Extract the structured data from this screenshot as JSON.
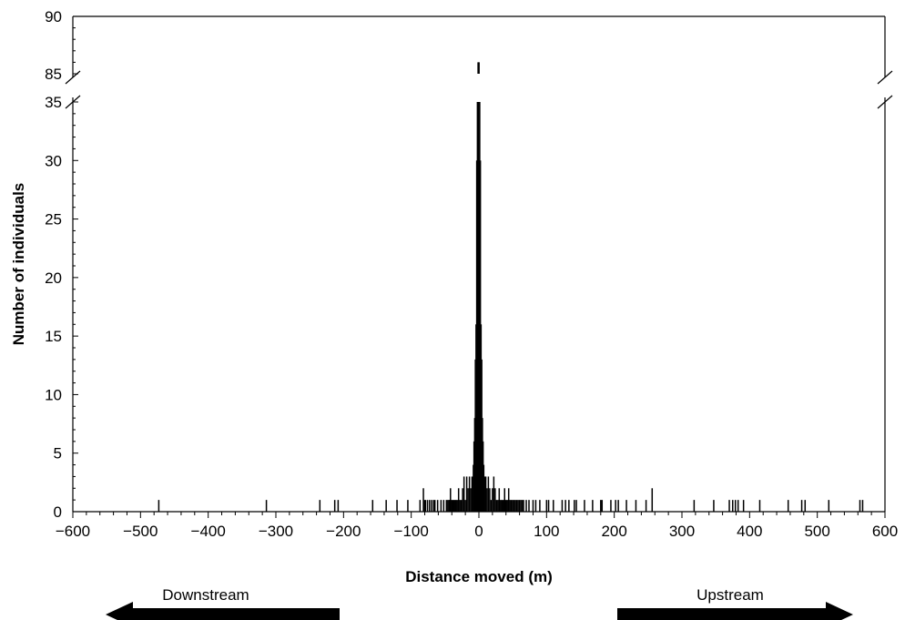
{
  "chart_data": {
    "type": "bar",
    "xlabel": "Distance moved (m)",
    "ylabel": "Number of individuals",
    "xlim": [
      -600,
      600
    ],
    "x_ticks": [
      -600,
      -500,
      -400,
      -300,
      -200,
      -100,
      0,
      100,
      200,
      300,
      400,
      500,
      600
    ],
    "y_lower_range": [
      0,
      35
    ],
    "y_upper_range": [
      85,
      90
    ],
    "y_lower_ticks": [
      0,
      5,
      10,
      15,
      20,
      25,
      30,
      35
    ],
    "y_upper_ticks": [
      85,
      90
    ],
    "axis_break": true,
    "bar_color": "#000000",
    "x": [
      -473,
      -314,
      -235,
      -213,
      -208,
      -157,
      -137,
      -121,
      -105,
      -87,
      -82,
      -81,
      -79,
      -76,
      -73,
      -70,
      -67,
      -65,
      -61,
      -56,
      -52,
      -48,
      -46,
      -44,
      -43,
      -42,
      -40,
      -38,
      -36,
      -34,
      -32,
      -30,
      -28,
      -26,
      -24,
      -22,
      -20,
      -18,
      -16,
      -14,
      -12,
      -10,
      -8,
      -7,
      -6,
      -5,
      -4,
      -3,
      -2,
      -1,
      0,
      1,
      2,
      3,
      4,
      5,
      6,
      7,
      8,
      10,
      12,
      14,
      16,
      18,
      20,
      22,
      24,
      26,
      28,
      30,
      32,
      34,
      36,
      38,
      40,
      42,
      44,
      46,
      48,
      50,
      52,
      54,
      56,
      58,
      60,
      62,
      64,
      66,
      70,
      74,
      80,
      84,
      90,
      100,
      103,
      110,
      123,
      128,
      133,
      141,
      144,
      156,
      168,
      180,
      182,
      195,
      202,
      206,
      218,
      232,
      247,
      256,
      318,
      347,
      370,
      375,
      379,
      383,
      391,
      415,
      457,
      477,
      482,
      517,
      563,
      567
    ],
    "values": [
      1,
      1,
      1,
      1,
      1,
      1,
      1,
      1,
      1,
      1,
      2,
      1,
      1,
      1,
      1,
      1,
      1,
      1,
      1,
      1,
      1,
      1,
      1,
      1,
      1,
      2,
      1,
      1,
      1,
      1,
      1,
      2,
      1,
      1,
      2,
      3,
      1,
      3,
      2,
      3,
      2,
      3,
      4,
      6,
      8,
      13,
      16,
      30,
      35,
      86,
      86,
      35,
      30,
      16,
      13,
      8,
      6,
      4,
      3,
      3,
      2,
      3,
      2,
      1,
      2,
      3,
      2,
      1,
      1,
      2,
      1,
      1,
      1,
      2,
      1,
      1,
      2,
      1,
      1,
      1,
      1,
      1,
      1,
      1,
      1,
      1,
      1,
      1,
      1,
      1,
      1,
      1,
      1,
      1,
      1,
      1,
      1,
      1,
      1,
      1,
      1,
      1,
      1,
      1,
      1,
      1,
      1,
      1,
      1,
      1,
      1,
      2,
      1,
      1,
      1,
      1,
      1,
      1,
      1,
      1,
      1,
      1,
      1,
      1,
      1,
      1
    ],
    "annotations": [
      {
        "text": "Downstream",
        "direction": "left"
      },
      {
        "text": "Upstream",
        "direction": "right"
      }
    ]
  }
}
